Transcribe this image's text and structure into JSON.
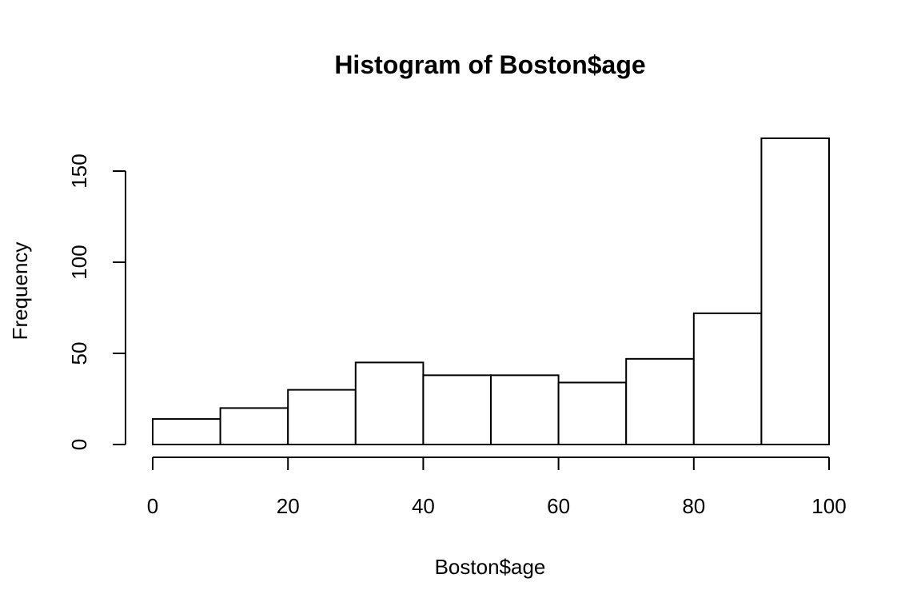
{
  "chart_data": {
    "type": "bar",
    "title": "Histogram of Boston$age",
    "xlabel": "Boston$age",
    "ylabel": "Frequency",
    "bin_edges": [
      0,
      10,
      20,
      30,
      40,
      50,
      60,
      70,
      80,
      90,
      100
    ],
    "values": [
      14,
      20,
      30,
      45,
      38,
      38,
      34,
      47,
      72,
      168
    ],
    "xlim": [
      0,
      100
    ],
    "ylim": [
      0,
      150
    ],
    "x_ticks": [
      0,
      20,
      40,
      60,
      80,
      100
    ],
    "y_ticks": [
      0,
      50,
      100,
      150
    ],
    "grid": false,
    "colors": {
      "bar_fill": "#ffffff",
      "bar_stroke": "#000000"
    }
  }
}
